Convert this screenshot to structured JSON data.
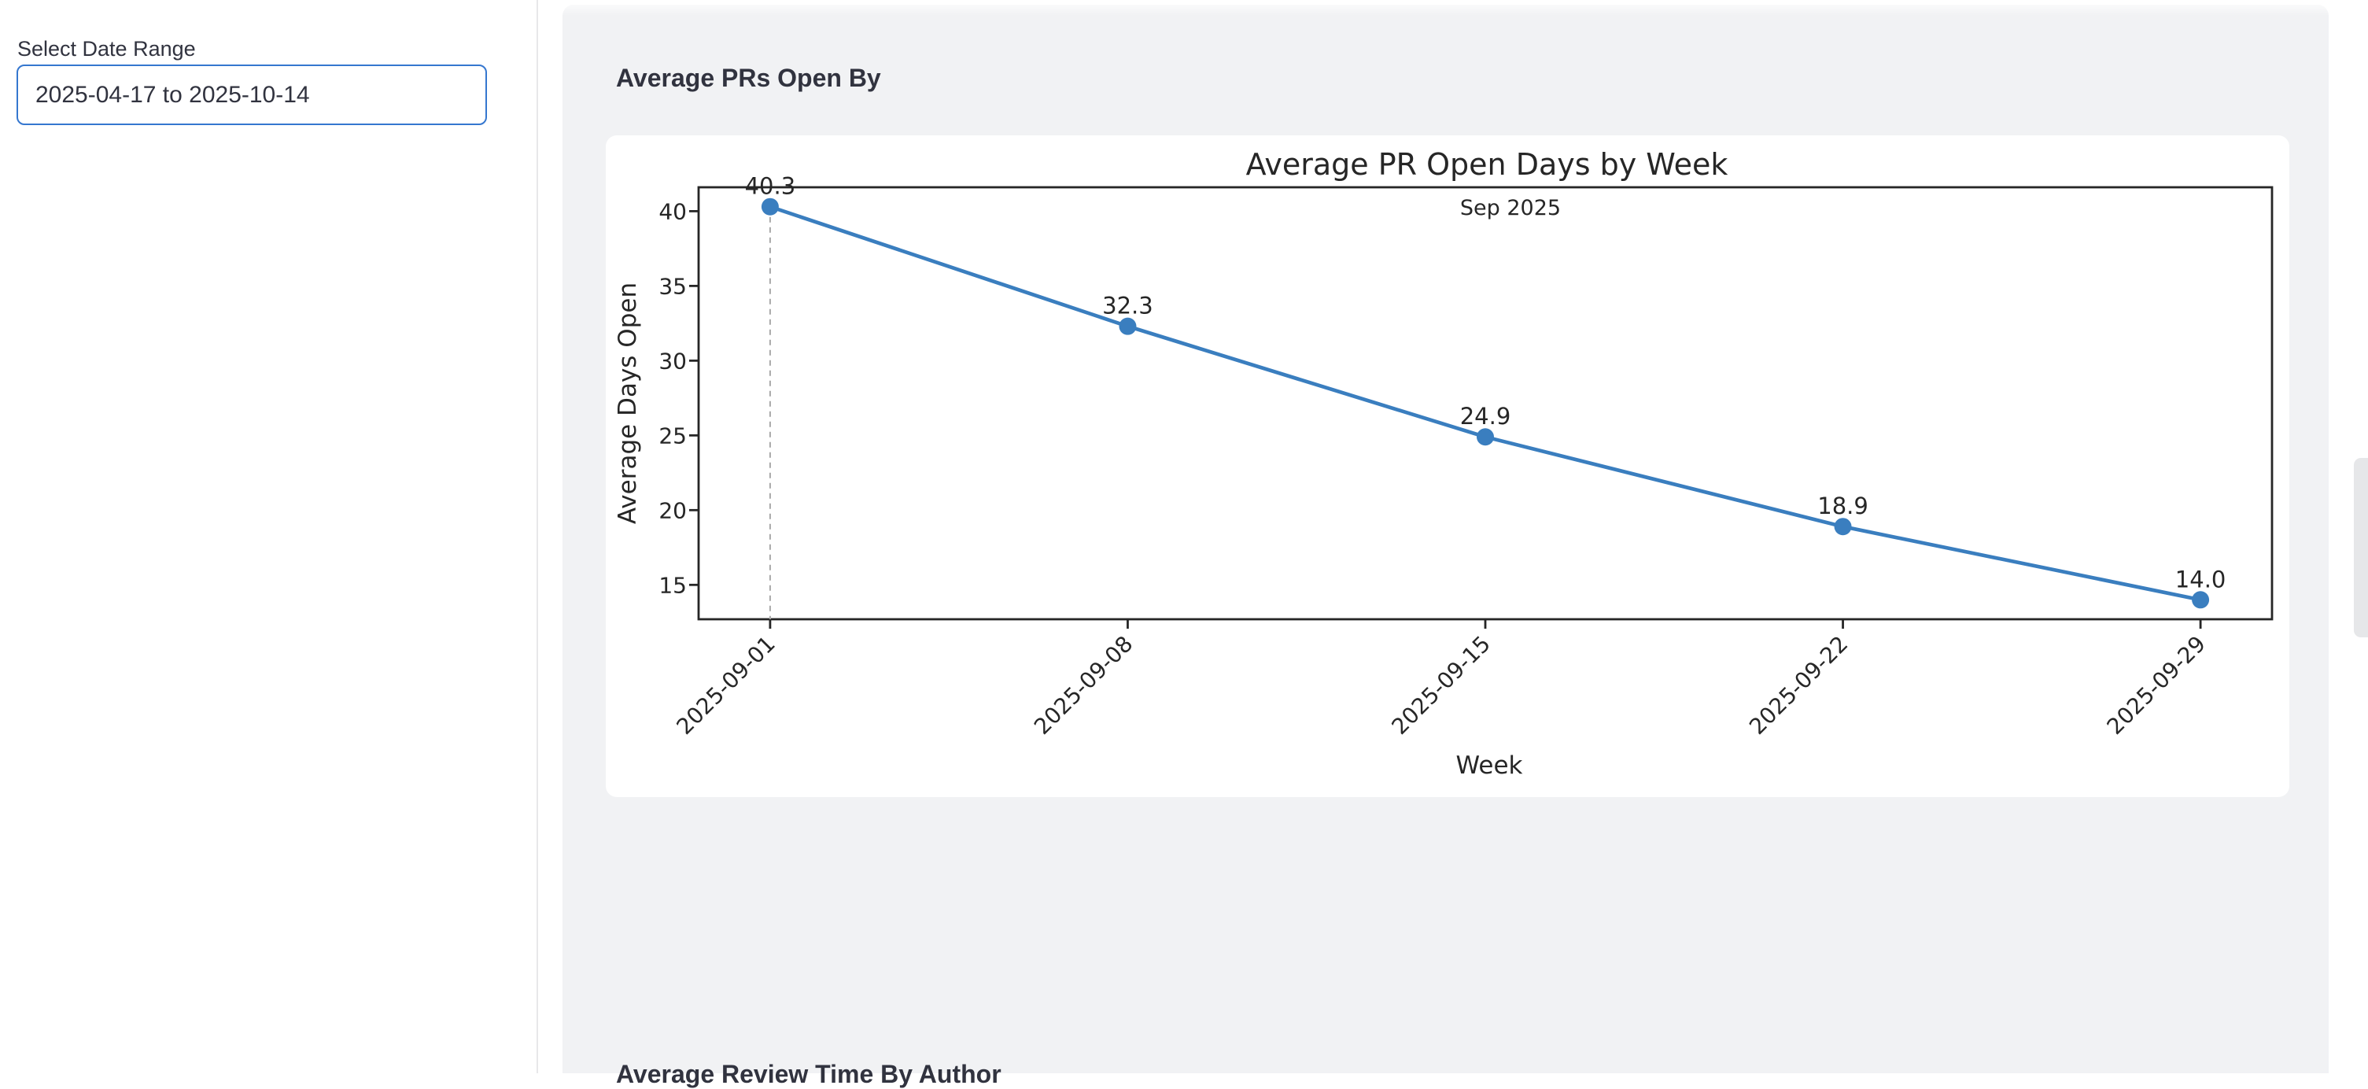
{
  "sidebar": {
    "date_range_label": "Select Date Range",
    "date_input": {
      "value": "2025-04-17 to 2025-10-14"
    }
  },
  "main": {
    "section1_heading": "Average PRs Open By",
    "section2_heading": "Average Review Time By Author"
  },
  "chart_data": {
    "type": "line",
    "title": "Average PR Open Days by Week",
    "xlabel": "Week",
    "ylabel": "Average Days Open",
    "annotation": "Sep 2025",
    "categories": [
      "2025-09-01",
      "2025-09-08",
      "2025-09-15",
      "2025-09-22",
      "2025-09-29"
    ],
    "values": [
      40.3,
      32.3,
      24.9,
      18.9,
      14.0
    ],
    "data_labels": [
      "40.3",
      "32.3",
      "24.9",
      "18.9",
      "14.0"
    ],
    "yticks": [
      40,
      35,
      30,
      25,
      20,
      15
    ],
    "ylim": [
      12.7,
      41.6
    ],
    "grid": false,
    "legend_position": "none",
    "line_color": "#3a7ebf",
    "marker_color": "#3a7ebf",
    "spine_color": "#262626",
    "dashed_guide_x": "2025-09-01"
  },
  "colors": {
    "accent_blue": "#3577cf",
    "panel_bg": "#f1f2f4",
    "page_bg": "#ffffff",
    "text": "#31333f"
  }
}
